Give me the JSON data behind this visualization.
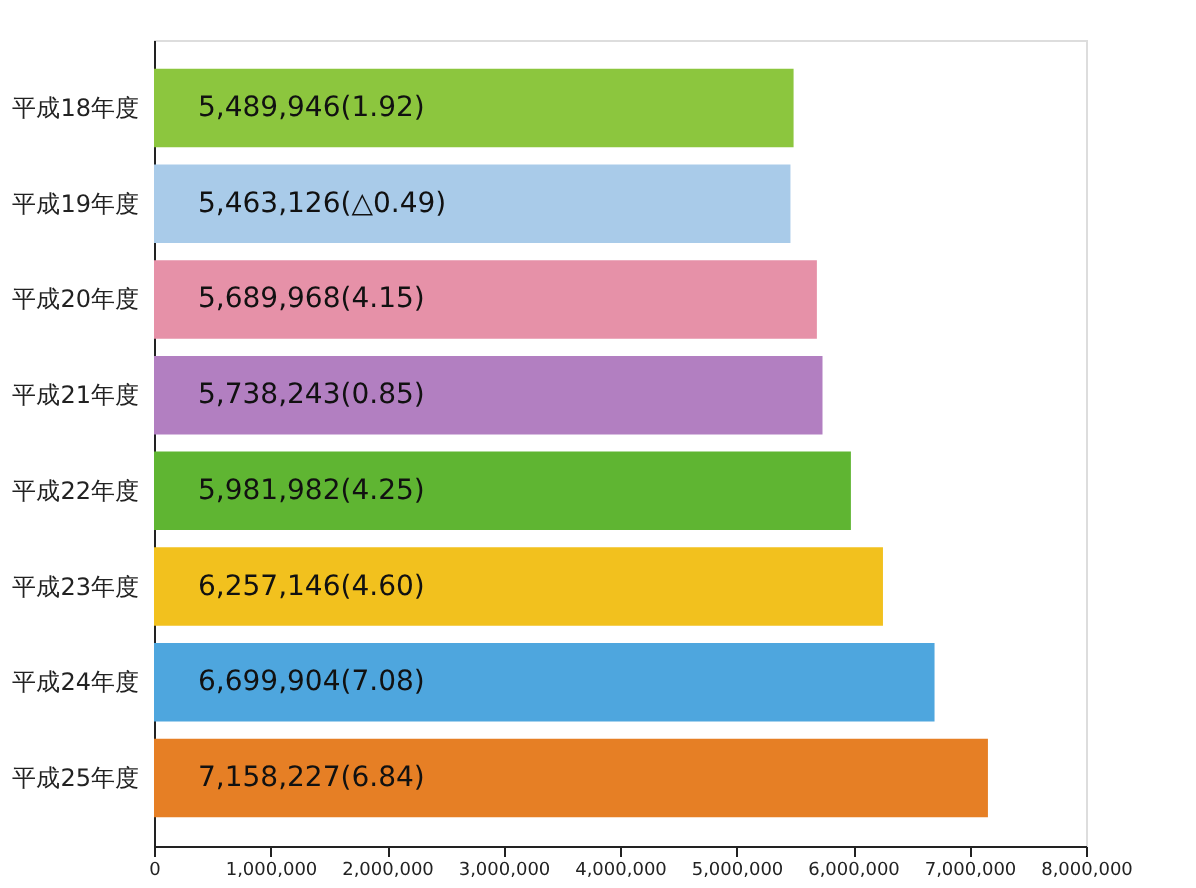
{
  "chart_data": {
    "type": "bar",
    "orientation": "horizontal",
    "categories": [
      "平成18年度",
      "平成19年度",
      "平成20年度",
      "平成21年度",
      "平成22年度",
      "平成23年度",
      "平成24年度",
      "平成25年度"
    ],
    "values": [
      5489946,
      5463126,
      5689968,
      5738243,
      5981982,
      6257146,
      6699904,
      7158227
    ],
    "colors": [
      "#8cc63e",
      "#a9cbe9",
      "#e691a8",
      "#b27fc1",
      "#5fb532",
      "#f2c11e",
      "#4ea6de",
      "#e67f25"
    ],
    "value_labels": [
      "5,489,946(1.92)",
      "5,463,126(△0.49)",
      "5,689,968(4.15)",
      "5,738,243(0.85)",
      "5,981,982(4.25)",
      "6,257,146(4.60)",
      "6,699,904(7.08)",
      "7,158,227(6.84)"
    ],
    "xlim": [
      0,
      8000000
    ],
    "xticks": [
      0,
      {
        "value": 1000000,
        "label": "1,000,000"
      },
      {
        "value": 2000000,
        "label": "2,000,000"
      },
      {
        "value": 3000000,
        "label": "3,000,000"
      },
      {
        "value": 4000000,
        "label": "4,000,000"
      },
      {
        "value": 5000000,
        "label": "5,000,000"
      },
      {
        "value": 6000000,
        "label": "6,000,000"
      },
      {
        "value": 7000000,
        "label": "7,000,000"
      },
      {
        "value": 8000000,
        "label": "8,000,000"
      }
    ],
    "grid": false
  }
}
